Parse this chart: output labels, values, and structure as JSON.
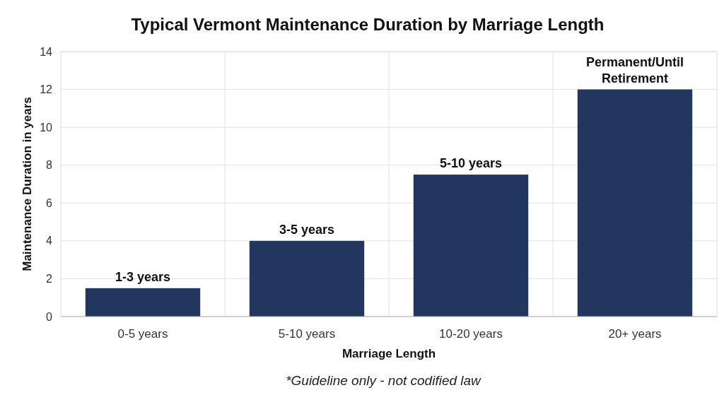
{
  "chart_data": {
    "type": "bar",
    "title": "Typical Vermont Maintenance Duration by Marriage Length",
    "xlabel": "Marriage Length",
    "ylabel": "Maintenance Duration in years",
    "categories": [
      "0-5 years",
      "5-10 years",
      "10-20 years",
      "20+ years"
    ],
    "values": [
      1.5,
      4,
      7.5,
      12
    ],
    "value_labels": [
      "1-3 years",
      "3-5 years",
      "5-10 years",
      "Permanent/Until Retirement"
    ],
    "color": "#22365f",
    "ylim": [
      0,
      14
    ],
    "yticks": [
      0,
      2,
      4,
      6,
      8,
      10,
      12,
      14
    ],
    "grid": true,
    "annotations": [
      "*Guideline only - not codified law"
    ]
  }
}
